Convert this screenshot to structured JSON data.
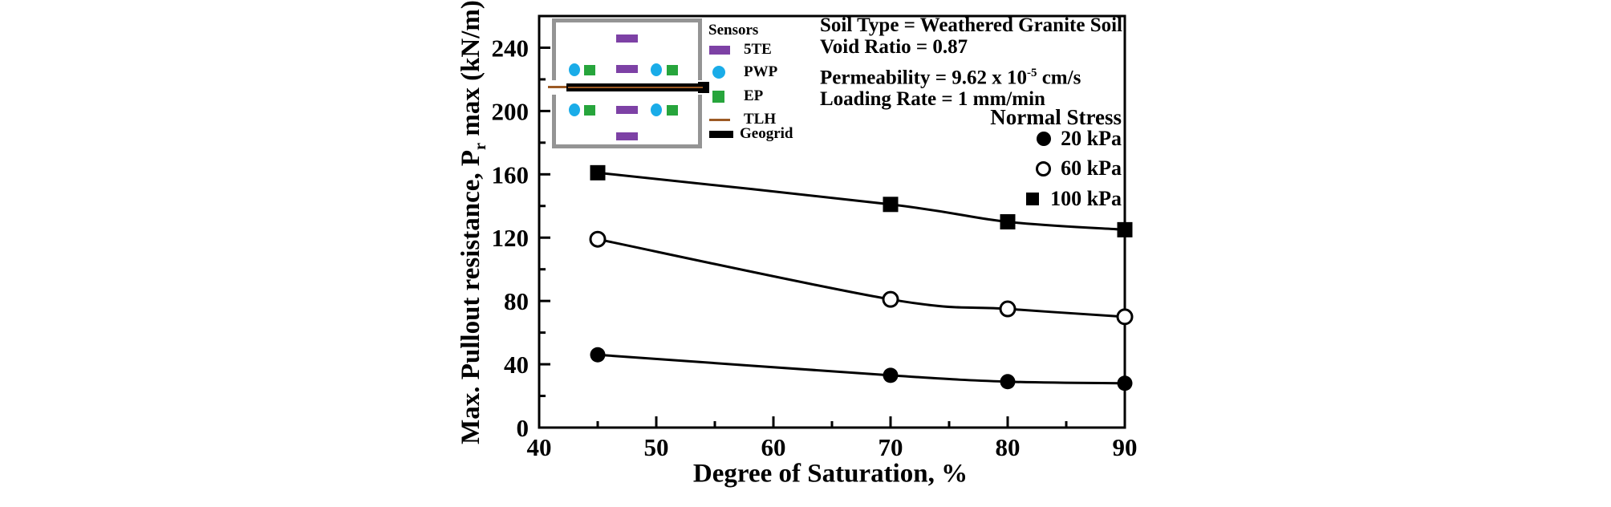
{
  "colors": {
    "purple_5te": "#7d41a5",
    "blue_pwp": "#1aace8",
    "green_ep": "#27a53c",
    "brown_tlh": "#9c5a24",
    "geogrid_black": "#000000",
    "inset_border_gray": "#949494",
    "axis_black": "#000000"
  },
  "axis": {
    "xlabel": "Degree of Saturation, %",
    "ylabel_pre": "Max. Pullout resistance, P",
    "ylabel_sub": "r",
    "ylabel_post": " max (kN/m)"
  },
  "inset": {
    "legend_title": "Sensors",
    "items": [
      {
        "label": "5TE",
        "swatch": "purple-rect-icon"
      },
      {
        "label": "PWP",
        "swatch": "blue-circle-icon"
      },
      {
        "label": "EP",
        "swatch": "green-square-icon"
      },
      {
        "label": "TLH",
        "swatch": "brown-line-icon"
      },
      {
        "label": "Geogrid",
        "swatch": "black-bar-icon"
      }
    ]
  },
  "annotations": {
    "line1": "Soil Type = Weathered Granite Soil",
    "line2": "Void Ratio = 0.87",
    "line3_base": "Permeability = 9.62 x 10",
    "line3_sup": "-5",
    "line3_unit": " cm/s",
    "line4": "Loading Rate = 1 mm/min"
  },
  "legend": {
    "title": "Normal Stress",
    "items": [
      {
        "label": "20 kPa",
        "marker": "filled-circle"
      },
      {
        "label": "60 kPa",
        "marker": "open-circle"
      },
      {
        "label": "100 kPa",
        "marker": "filled-square"
      }
    ]
  },
  "chart_data": {
    "type": "line",
    "x": [
      45,
      70,
      80,
      90
    ],
    "series": [
      {
        "name": "20 kPa",
        "marker": "filled-circle",
        "values": [
          46,
          33,
          29,
          28
        ]
      },
      {
        "name": "60 kPa",
        "marker": "open-circle",
        "values": [
          119,
          81,
          75,
          70
        ]
      },
      {
        "name": "100 kPa",
        "marker": "filled-square",
        "values": [
          161,
          141,
          130,
          125
        ]
      }
    ],
    "title": "",
    "xlabel": "Degree of Saturation, %",
    "ylabel": "Max. Pullout resistance, Pr max (kN/m)",
    "xlim": [
      40,
      90
    ],
    "ylim": [
      0,
      260
    ],
    "xticks": [
      40,
      50,
      60,
      70,
      80,
      90
    ],
    "xticks_minor": [
      45,
      55,
      65,
      75,
      85
    ],
    "yticks": [
      0,
      40,
      80,
      120,
      160,
      200,
      240
    ],
    "yticks_minor": [
      20,
      60,
      100,
      140,
      180,
      220
    ],
    "grid": false,
    "legend_position": "upper-right-inside"
  }
}
